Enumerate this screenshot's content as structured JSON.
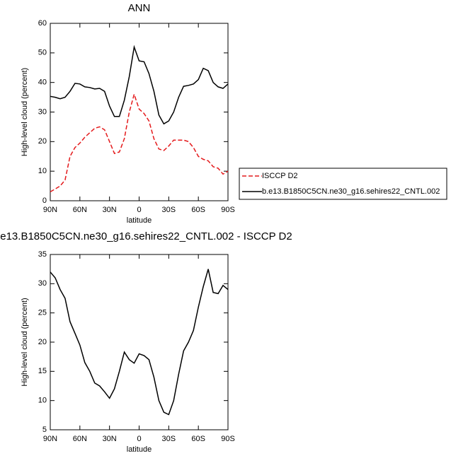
{
  "chart_data": [
    {
      "type": "line",
      "title": "ANN",
      "xlabel": "latitude",
      "ylabel": "High-level cloud (percent)",
      "x": [
        90,
        85,
        80,
        75,
        70,
        65,
        60,
        55,
        50,
        45,
        40,
        35,
        30,
        25,
        20,
        15,
        10,
        5,
        0,
        -5,
        -10,
        -15,
        -20,
        -25,
        -30,
        -35,
        -40,
        -45,
        -50,
        -55,
        -60,
        -65,
        -70,
        -75,
        -80,
        -85,
        -90
      ],
      "xlim": [
        90,
        -90
      ],
      "xticks": [
        {
          "value": 90,
          "label": "90N"
        },
        {
          "value": 60,
          "label": "60N"
        },
        {
          "value": 30,
          "label": "30N"
        },
        0,
        {
          "value": -30,
          "label": "30S"
        },
        {
          "value": -60,
          "label": "60S"
        },
        {
          "value": -90,
          "label": "90S"
        }
      ],
      "ylim": [
        0,
        60
      ],
      "yticks": [
        0,
        10,
        20,
        30,
        40,
        50,
        60
      ],
      "series": [
        {
          "name": "ISCCP D2",
          "color": "#e41a1c",
          "style": "dashed",
          "values": [
            3,
            4,
            5,
            7,
            15,
            18,
            19.5,
            21.5,
            23,
            24.5,
            25,
            24,
            20,
            16,
            16.5,
            21,
            30,
            36,
            31,
            29.5,
            27,
            21,
            17.5,
            17,
            18.5,
            20.5,
            20.5,
            20.5,
            20,
            18,
            15,
            14,
            13.5,
            11.5,
            11,
            9,
            10
          ]
        },
        {
          "name": "b.e13.B1850C5CN.ne30_g16.sehires22_CNTL.002",
          "color": "#000000",
          "style": "solid",
          "values": [
            35.3,
            35,
            34.5,
            35,
            37,
            39.7,
            39.5,
            38.5,
            38.3,
            37.8,
            38,
            37,
            32,
            28.5,
            28.5,
            34,
            42,
            52,
            47.3,
            47,
            43,
            37,
            29,
            26,
            27,
            30,
            35,
            38.7,
            39,
            39.5,
            41,
            44.8,
            44,
            40,
            38.5,
            38,
            39.5
          ]
        }
      ]
    },
    {
      "type": "line",
      "title": "e13.B1850C5CN.ne30_g16.sehires22_CNTL.002 - ISCCP D2",
      "xlabel": "latitude",
      "ylabel": "High-level cloud (percent)",
      "x": [
        90,
        85,
        80,
        75,
        70,
        65,
        60,
        55,
        50,
        45,
        40,
        35,
        30,
        25,
        20,
        15,
        10,
        5,
        0,
        -5,
        -10,
        -15,
        -20,
        -25,
        -30,
        -35,
        -40,
        -45,
        -50,
        -55,
        -60,
        -65,
        -70,
        -75,
        -80,
        -85,
        -90
      ],
      "xlim": [
        90,
        -90
      ],
      "xticks": [
        {
          "value": 90,
          "label": "90N"
        },
        {
          "value": 60,
          "label": "60N"
        },
        {
          "value": 30,
          "label": "30N"
        },
        0,
        {
          "value": -30,
          "label": "30S"
        },
        {
          "value": -60,
          "label": "60S"
        },
        {
          "value": -90,
          "label": "90S"
        }
      ],
      "ylim": [
        5,
        35
      ],
      "yticks": [
        5,
        10,
        15,
        20,
        25,
        30,
        35
      ],
      "series": [
        {
          "color": "#000000",
          "style": "solid",
          "values": [
            32,
            31,
            29,
            27.5,
            23.5,
            21.5,
            19.5,
            16.5,
            15,
            13,
            12.5,
            11.5,
            10.4,
            12,
            15,
            18.3,
            17,
            16.4,
            18,
            17.7,
            17,
            14,
            10,
            8,
            7.6,
            10,
            14.5,
            18.5,
            20,
            22,
            26,
            29.5,
            32.5,
            28.5,
            28.3,
            29.7,
            29
          ]
        }
      ]
    }
  ]
}
